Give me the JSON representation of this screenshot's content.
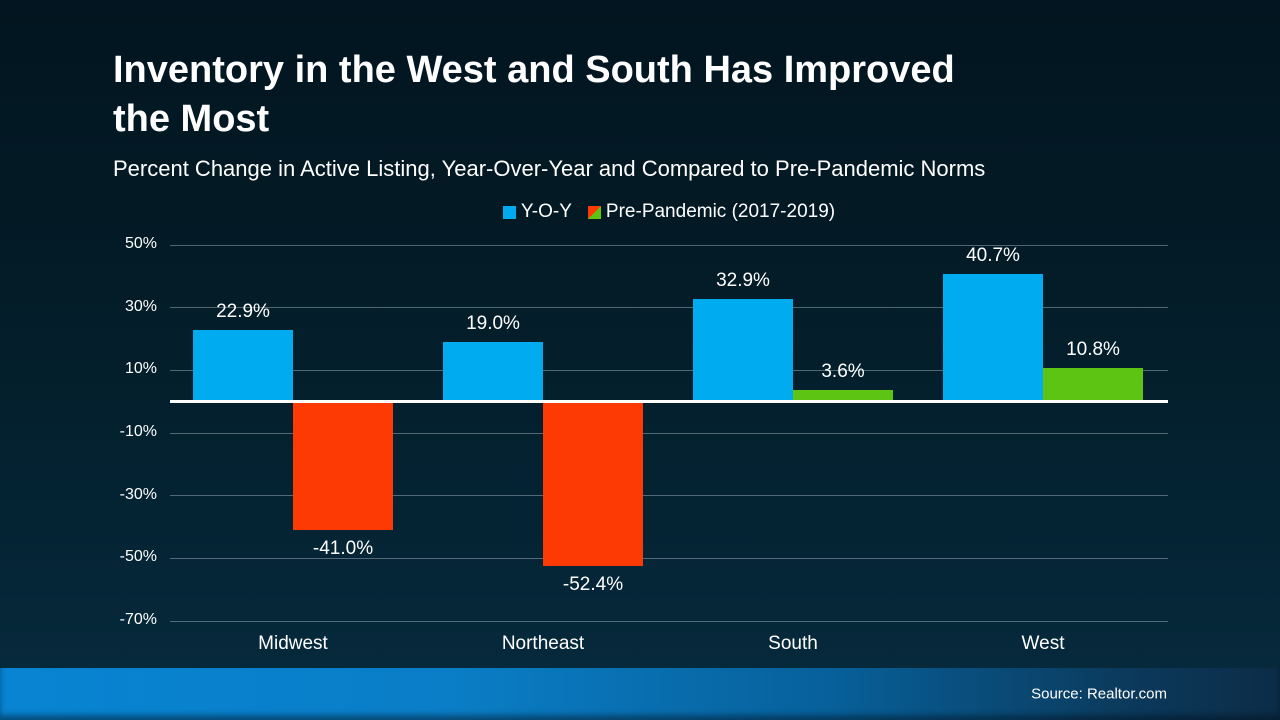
{
  "header": {
    "title": "Inventory in the West and South Has Improved the Most",
    "title_lines": [
      "Inventory in the West and South Has Improved",
      "the Most"
    ],
    "subtitle": "Percent Change in Active Listing, Year-Over-Year and Compared to Pre-Pandemic Norms"
  },
  "legend": {
    "items": [
      {
        "label": "Y-O-Y",
        "swatch": [
          "#00ABF0"
        ]
      },
      {
        "label": "Pre-Pandemic (2017-2019)",
        "swatch": [
          "#FD3A03",
          "#5EC413"
        ]
      }
    ]
  },
  "chart_data": {
    "type": "bar",
    "categories": [
      "Midwest",
      "Northeast",
      "South",
      "West"
    ],
    "series": [
      {
        "name": "Y-O-Y",
        "color": "#00ABF0",
        "values": [
          22.9,
          19.0,
          32.9,
          40.7
        ],
        "labels": [
          "22.9%",
          "19.0%",
          "32.9%",
          "40.7%"
        ]
      },
      {
        "name": "Pre-Pandemic (2017-2019)",
        "color_positive": "#5EC413",
        "color_negative": "#FD3A03",
        "values": [
          -41.0,
          -52.4,
          3.6,
          10.8
        ],
        "labels": [
          "-41.0%",
          "-52.4%",
          "3.6%",
          "10.8%"
        ]
      }
    ],
    "ylim": [
      -70,
      50
    ],
    "yticks": [
      50,
      30,
      10,
      -10,
      -30,
      -50,
      -70
    ],
    "ytick_labels": [
      "50%",
      "30%",
      "10%",
      "-10%",
      "-30%",
      "-50%",
      "-70%"
    ],
    "grid": true,
    "zero_line": true,
    "legend_position": "top"
  },
  "footer": {
    "source": "Source: Realtor.com"
  },
  "colors": {
    "background_top": "#021520",
    "background_bottom": "#062B3E",
    "bar_blue": "#00ABF0",
    "bar_red": "#FD3A03",
    "bar_green": "#5EC413",
    "gridline": "rgba(190,205,215,0.42)",
    "zero_line": "#FFFFFF",
    "footer_left": "#0884D2",
    "footer_right": "#0C2C47",
    "text": "#FFFFFF"
  }
}
